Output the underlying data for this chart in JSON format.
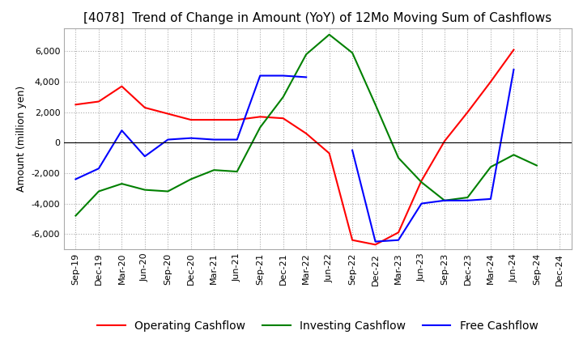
{
  "title": "[4078]  Trend of Change in Amount (YoY) of 12Mo Moving Sum of Cashflows",
  "ylabel": "Amount (million yen)",
  "ylim": [
    -7000,
    7500
  ],
  "yticks": [
    -6000,
    -4000,
    -2000,
    0,
    2000,
    4000,
    6000
  ],
  "x_labels": [
    "Sep-19",
    "Dec-19",
    "Mar-20",
    "Jun-20",
    "Sep-20",
    "Dec-20",
    "Mar-21",
    "Jun-21",
    "Sep-21",
    "Dec-21",
    "Mar-22",
    "Jun-22",
    "Sep-22",
    "Dec-22",
    "Mar-23",
    "Jun-23",
    "Sep-23",
    "Dec-23",
    "Mar-24",
    "Jun-24",
    "Sep-24",
    "Dec-24"
  ],
  "operating": [
    2500,
    2700,
    3700,
    2300,
    1900,
    1500,
    1500,
    1500,
    1700,
    1600,
    600,
    -700,
    -6400,
    -6700,
    -5900,
    -2500,
    100,
    2000,
    4000,
    6100,
    null,
    null
  ],
  "investing": [
    -4800,
    -3200,
    -2700,
    -3100,
    -3200,
    -2400,
    -1800,
    -1900,
    1000,
    3000,
    5800,
    7100,
    5900,
    2500,
    -1000,
    -2600,
    -3800,
    -3600,
    -1600,
    -800,
    -1500,
    null
  ],
  "free": [
    -2400,
    -1700,
    800,
    -900,
    200,
    300,
    200,
    200,
    4400,
    4400,
    4300,
    null,
    -500,
    -6500,
    -6400,
    -4000,
    -3800,
    -3800,
    -3700,
    4800,
    null,
    null
  ],
  "line_colors": {
    "operating": "#ff0000",
    "investing": "#008000",
    "free": "#0000ff"
  },
  "legend_labels": [
    "Operating Cashflow",
    "Investing Cashflow",
    "Free Cashflow"
  ],
  "title_fontsize": 11,
  "label_fontsize": 9,
  "tick_fontsize": 8,
  "background_color": "#ffffff",
  "grid_color": "#aaaaaa"
}
